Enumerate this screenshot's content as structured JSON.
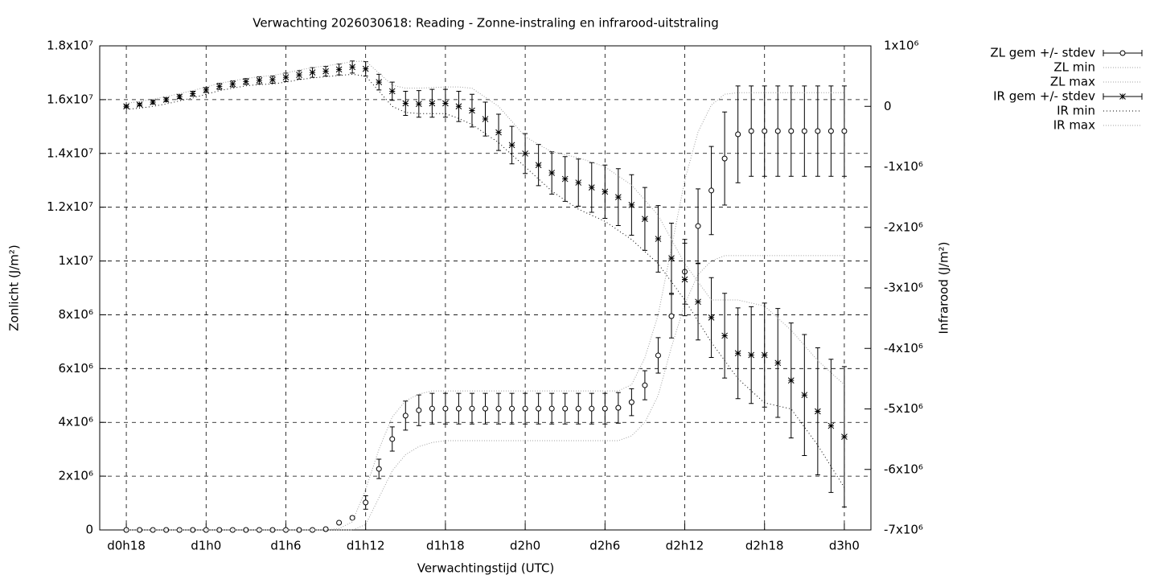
{
  "chart_data": {
    "type": "errorbar",
    "title": "Verwachting 2026030618: Reading - Zonne-instraling en infrarood-uitstraling",
    "xlabel": "Verwachtingstijd (UTC)",
    "ylabel": "Zonlicht (J/m²)",
    "y2label": "Infrarood (J/m²)",
    "x": [
      18,
      19,
      20,
      21,
      22,
      23,
      24,
      25,
      26,
      27,
      28,
      29,
      30,
      31,
      32,
      33,
      34,
      35,
      36,
      37,
      38,
      39,
      40,
      41,
      42,
      43,
      44,
      45,
      46,
      47,
      48,
      49,
      50,
      51,
      52,
      53,
      54,
      55,
      56,
      57,
      58,
      59,
      60,
      61,
      62,
      63,
      64,
      65,
      66,
      67,
      68,
      69,
      70,
      71,
      72
    ],
    "xlim": [
      16,
      74
    ],
    "xticks": [
      {
        "value": 18,
        "label": "d0h18"
      },
      {
        "value": 24,
        "label": "d1h0"
      },
      {
        "value": 30,
        "label": "d1h6"
      },
      {
        "value": 36,
        "label": "d1h12"
      },
      {
        "value": 42,
        "label": "d1h18"
      },
      {
        "value": 48,
        "label": "d2h0"
      },
      {
        "value": 54,
        "label": "d2h6"
      },
      {
        "value": 60,
        "label": "d2h12"
      },
      {
        "value": 66,
        "label": "d2h18"
      },
      {
        "value": 72,
        "label": "d3h0"
      }
    ],
    "ylim": [
      0,
      18000000.0
    ],
    "yticks": [
      0,
      {
        "value": 2000000.0,
        "label": "2x10⁶"
      },
      {
        "value": 4000000.0,
        "label": "4x10⁶"
      },
      {
        "value": 6000000.0,
        "label": "6x10⁶"
      },
      {
        "value": 8000000.0,
        "label": "8x10⁶"
      },
      {
        "value": 10000000.0,
        "label": "1x10⁷"
      },
      {
        "value": 12000000.0,
        "label": "1.2x10⁷"
      },
      {
        "value": 14000000.0,
        "label": "1.4x10⁷"
      },
      {
        "value": 16000000.0,
        "label": "1.6x10⁷"
      },
      {
        "value": 18000000.0,
        "label": "1.8x10⁷"
      }
    ],
    "y2lim": [
      -7000000.0,
      1000000.0
    ],
    "y2ticks": [
      {
        "value": -7000000.0,
        "label": "-7x10⁶"
      },
      {
        "value": -6000000.0,
        "label": "-6x10⁶"
      },
      {
        "value": -5000000.0,
        "label": "-5x10⁶"
      },
      {
        "value": -4000000.0,
        "label": "-4x10⁶"
      },
      {
        "value": -3000000.0,
        "label": "-3x10⁶"
      },
      {
        "value": -2000000.0,
        "label": "-2x10⁶"
      },
      {
        "value": -1000000.0,
        "label": "-1x10⁶"
      },
      0,
      {
        "value": 1000000.0,
        "label": "1x10⁶"
      }
    ],
    "grid": true,
    "legend": "outside-top-right",
    "series": [
      {
        "name": "ZL gem +/- stdev",
        "color": "#000000",
        "style": "circle",
        "axis": "y",
        "values": [
          0,
          0,
          0,
          0,
          0,
          0,
          0,
          0,
          0,
          0,
          0,
          0,
          0,
          0,
          0,
          30000.0,
          270000.0,
          450000.0,
          1020000.0,
          2270000.0,
          3380000.0,
          4250000.0,
          4450000.0,
          4510000.0,
          4510000.0,
          4510000.0,
          4510000.0,
          4510000.0,
          4510000.0,
          4510000.0,
          4510000.0,
          4510000.0,
          4510000.0,
          4510000.0,
          4510000.0,
          4510000.0,
          4510000.0,
          4540000.0,
          4750000.0,
          5380000.0,
          6490000.0,
          7950000.0,
          9600000.0,
          11300000.0,
          12620000.0,
          13810000.0,
          14710000.0,
          14830000.0,
          14830000.0,
          14830000.0,
          14830000.0,
          14830000.0,
          14830000.0,
          14830000.0,
          14830000.0
        ],
        "stdev": [
          0,
          0,
          0,
          0,
          0,
          0,
          0,
          0,
          0,
          0,
          0,
          0,
          0,
          0,
          0,
          0,
          0,
          50000.0,
          250000.0,
          360000.0,
          450000.0,
          540000.0,
          570000.0,
          570000.0,
          570000.0,
          570000.0,
          570000.0,
          570000.0,
          570000.0,
          570000.0,
          570000.0,
          570000.0,
          570000.0,
          570000.0,
          570000.0,
          570000.0,
          570000.0,
          570000.0,
          500000.0,
          540000.0,
          660000.0,
          810000.0,
          1200000.0,
          1380000.0,
          1640000.0,
          1730000.0,
          1800000.0,
          1680000.0,
          1680000.0,
          1680000.0,
          1680000.0,
          1680000.0,
          1680000.0,
          1680000.0,
          1680000.0
        ]
      },
      {
        "name": "ZL min",
        "color": "#a0a0a0",
        "style": "dotted",
        "axis": "y",
        "values": [
          0,
          0,
          0,
          0,
          0,
          0,
          0,
          0,
          0,
          0,
          0,
          0,
          0,
          0,
          0,
          0,
          0,
          0,
          200000.0,
          1200000.0,
          2200000.0,
          2800000.0,
          3100000.0,
          3250000.0,
          3320000.0,
          3320000.0,
          3320000.0,
          3320000.0,
          3320000.0,
          3320000.0,
          3320000.0,
          3320000.0,
          3320000.0,
          3320000.0,
          3320000.0,
          3320000.0,
          3320000.0,
          3320000.0,
          3500000.0,
          4000000.0,
          5000000.0,
          6800000.0,
          8400000.0,
          9500000.0,
          10000000.0,
          10200000.0,
          10200000.0,
          10200000.0,
          10200000.0,
          10200000.0,
          10200000.0,
          10200000.0,
          10200000.0,
          10200000.0,
          10200000.0
        ]
      },
      {
        "name": "ZL max",
        "color": "#a0a0a0",
        "style": "dotted",
        "axis": "y",
        "values": [
          0,
          0,
          0,
          0,
          0,
          0,
          0,
          0,
          0,
          0,
          0,
          0,
          0,
          0,
          0,
          0,
          50000.0,
          300000.0,
          1500000.0,
          3000000.0,
          4200000.0,
          4800000.0,
          5050000.0,
          5170000.0,
          5170000.0,
          5170000.0,
          5170000.0,
          5170000.0,
          5170000.0,
          5170000.0,
          5170000.0,
          5170000.0,
          5170000.0,
          5170000.0,
          5170000.0,
          5170000.0,
          5170000.0,
          5170000.0,
          5400000.0,
          6400000.0,
          8000000.0,
          10500000.0,
          13000000.0,
          14800000.0,
          15800000.0,
          16200000.0,
          16260000.0,
          16260000.0,
          16260000.0,
          16260000.0,
          16260000.0,
          16260000.0,
          16260000.0,
          16260000.0,
          16260000.0
        ]
      },
      {
        "name": "IR gem +/- stdev",
        "color": "#000000",
        "style": "star",
        "axis": "y2",
        "values": [
          0,
          30000.0,
          70000.0,
          110000.0,
          160000.0,
          210000.0,
          270000.0,
          330000.0,
          370000.0,
          410000.0,
          430000.0,
          440000.0,
          480000.0,
          520000.0,
          560000.0,
          580000.0,
          610000.0,
          650000.0,
          620000.0,
          400000.0,
          250000.0,
          50000.0,
          40000.0,
          50000.0,
          50000.0,
          0,
          -70000.0,
          -210000.0,
          -430000.0,
          -640000.0,
          -780000.0,
          -970000.0,
          -1100000.0,
          -1200000.0,
          -1260000.0,
          -1340000.0,
          -1410000.0,
          -1500000.0,
          -1630000.0,
          -1860000.0,
          -2190000.0,
          -2510000.0,
          -2860000.0,
          -3230000.0,
          -3490000.0,
          -3790000.0,
          -4080000.0,
          -4110000.0,
          -4110000.0,
          -4240000.0,
          -4530000.0,
          -4770000.0,
          -5040000.0,
          -5280000.0,
          -5460000.0
        ],
        "stdev": [
          20000.0,
          20000.0,
          30000.0,
          30000.0,
          30000.0,
          40000.0,
          40000.0,
          50000.0,
          50000.0,
          50000.0,
          60000.0,
          60000.0,
          70000.0,
          70000.0,
          80000.0,
          80000.0,
          90000.0,
          100000.0,
          120000.0,
          130000.0,
          150000.0,
          200000.0,
          220000.0,
          230000.0,
          230000.0,
          250000.0,
          270000.0,
          280000.0,
          300000.0,
          310000.0,
          330000.0,
          340000.0,
          350000.0,
          370000.0,
          390000.0,
          410000.0,
          440000.0,
          470000.0,
          500000.0,
          520000.0,
          550000.0,
          580000.0,
          600000.0,
          630000.0,
          660000.0,
          700000.0,
          750000.0,
          800000.0,
          860000.0,
          900000.0,
          950000.0,
          1000000.0,
          1050000.0,
          1100000.0,
          1160000.0
        ]
      },
      {
        "name": "IR min",
        "color": "#000000",
        "style": "dense-dotted",
        "axis": "y2",
        "values": [
          -50000.0,
          -30000.0,
          0,
          40000.0,
          90000.0,
          140000.0,
          200000.0,
          260000.0,
          300000.0,
          340000.0,
          360000.0,
          370000.0,
          400000.0,
          440000.0,
          470000.0,
          490000.0,
          510000.0,
          530000.0,
          500000.0,
          250000.0,
          0,
          -100000.0,
          -120000.0,
          -120000.0,
          -120000.0,
          -200000.0,
          -300000.0,
          -450000.0,
          -600000.0,
          -800000.0,
          -1000000.0,
          -1200000.0,
          -1400000.0,
          -1550000.0,
          -1700000.0,
          -1800000.0,
          -1900000.0,
          -2050000.0,
          -2200000.0,
          -2400000.0,
          -2600000.0,
          -2900000.0,
          -3200000.0,
          -3550000.0,
          -3900000.0,
          -4200000.0,
          -4500000.0,
          -4700000.0,
          -4900000.0,
          -4950000.0,
          -5000000.0,
          -5300000.0,
          -5600000.0,
          -5950000.0,
          -6300000.0
        ]
      },
      {
        "name": "IR max",
        "color": "#a0a0a0",
        "style": "dotted",
        "axis": "y2",
        "values": [
          50000.0,
          80000.0,
          120000.0,
          160000.0,
          210000.0,
          260000.0,
          320000.0,
          380000.0,
          420000.0,
          460000.0,
          490000.0,
          510000.0,
          550000.0,
          600000.0,
          640000.0,
          670000.0,
          700000.0,
          740000.0,
          750000.0,
          550000.0,
          350000.0,
          300000.0,
          300000.0,
          310000.0,
          320000.0,
          320000.0,
          300000.0,
          150000.0,
          0,
          -250000.0,
          -500000.0,
          -630000.0,
          -750000.0,
          -800000.0,
          -850000.0,
          -920000.0,
          -1000000.0,
          -1150000.0,
          -1300000.0,
          -1550000.0,
          -1800000.0,
          -2200000.0,
          -2600000.0,
          -2900000.0,
          -3200000.0,
          -3200000.0,
          -3200000.0,
          -3250000.0,
          -3300000.0,
          -3500000.0,
          -3700000.0,
          -3950000.0,
          -4200000.0,
          -4400000.0,
          -4600000.0
        ]
      }
    ]
  }
}
